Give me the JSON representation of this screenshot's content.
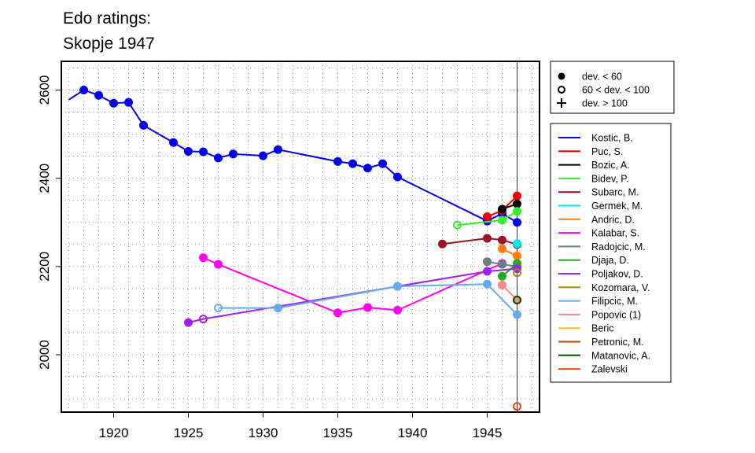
{
  "chart_data": {
    "type": "line",
    "title_lines": [
      "Edo ratings:",
      "Skopje 1947"
    ],
    "xlabel": "",
    "ylabel": "",
    "xlim": [
      1916.5,
      1948.5
    ],
    "ylim": [
      1870,
      2665
    ],
    "x_ticks": [
      1920,
      1925,
      1930,
      1935,
      1940,
      1945
    ],
    "y_ticks": [
      2000,
      2200,
      2400,
      2600
    ],
    "grid": "dotted",
    "reference_line_x": 1947,
    "legend_placement": "right",
    "marker_legend": [
      {
        "marker": "filled",
        "label": "dev. < 60"
      },
      {
        "marker": "open",
        "label": "60 < dev. < 100"
      },
      {
        "marker": "plus",
        "label": "dev. > 100"
      }
    ],
    "series": [
      {
        "name": "Kostic, B.",
        "color": "#0000ee",
        "points": [
          {
            "x": 1917,
            "y": 2578,
            "m": "none"
          },
          {
            "x": 1918,
            "y": 2600,
            "m": "filled"
          },
          {
            "x": 1919,
            "y": 2588,
            "m": "filled"
          },
          {
            "x": 1920,
            "y": 2570,
            "m": "filled"
          },
          {
            "x": 1921,
            "y": 2572,
            "m": "filled"
          },
          {
            "x": 1922,
            "y": 2520,
            "m": "filled"
          },
          {
            "x": 1924,
            "y": 2481,
            "m": "filled"
          },
          {
            "x": 1925,
            "y": 2461,
            "m": "filled"
          },
          {
            "x": 1926,
            "y": 2460,
            "m": "filled"
          },
          {
            "x": 1927,
            "y": 2446,
            "m": "filled"
          },
          {
            "x": 1928,
            "y": 2455,
            "m": "filled"
          },
          {
            "x": 1930,
            "y": 2451,
            "m": "filled"
          },
          {
            "x": 1931,
            "y": 2465,
            "m": "filled"
          },
          {
            "x": 1935,
            "y": 2438,
            "m": "filled"
          },
          {
            "x": 1936,
            "y": 2433,
            "m": "filled"
          },
          {
            "x": 1937,
            "y": 2423,
            "m": "filled"
          },
          {
            "x": 1938,
            "y": 2433,
            "m": "filled"
          },
          {
            "x": 1939,
            "y": 2403,
            "m": "filled"
          },
          {
            "x": 1945,
            "y": 2303,
            "m": "filled"
          },
          {
            "x": 1946,
            "y": 2320,
            "m": "filled"
          },
          {
            "x": 1947,
            "y": 2300,
            "m": "filled"
          }
        ]
      },
      {
        "name": "Puc, S.",
        "color": "#ee0000",
        "points": [
          {
            "x": 1945,
            "y": 2313,
            "m": "filled"
          },
          {
            "x": 1946,
            "y": 2327,
            "m": "filled"
          },
          {
            "x": 1947,
            "y": 2360,
            "m": "filled"
          }
        ]
      },
      {
        "name": "Bozic, A.",
        "color": "#000000",
        "points": [
          {
            "x": 1946,
            "y": 2330,
            "m": "filled"
          },
          {
            "x": 1947,
            "y": 2342,
            "m": "filled"
          }
        ]
      },
      {
        "name": "Bidev, P.",
        "color": "#33ee33",
        "points": [
          {
            "x": 1943,
            "y": 2294,
            "m": "open"
          },
          {
            "x": 1946,
            "y": 2305,
            "m": "filled"
          },
          {
            "x": 1947,
            "y": 2325,
            "m": "filled"
          }
        ]
      },
      {
        "name": "Subarc, M.",
        "color": "#a01020",
        "points": [
          {
            "x": 1942,
            "y": 2251,
            "m": "filled"
          },
          {
            "x": 1945,
            "y": 2264,
            "m": "filled"
          },
          {
            "x": 1946,
            "y": 2260,
            "m": "filled"
          },
          {
            "x": 1947,
            "y": 2250,
            "m": "filled"
          }
        ]
      },
      {
        "name": "Germek, M.",
        "color": "#00e8ee",
        "points": [
          {
            "x": 1947,
            "y": 2252,
            "m": "filled"
          }
        ]
      },
      {
        "name": "Andric, D.",
        "color": "#ff7f0e",
        "points": [
          {
            "x": 1946,
            "y": 2240,
            "m": "filled"
          },
          {
            "x": 1947,
            "y": 2224,
            "m": "filled"
          }
        ]
      },
      {
        "name": "Kalabar, S.",
        "color": "#ff00ee",
        "points": [
          {
            "x": 1926,
            "y": 2220,
            "m": "filled"
          },
          {
            "x": 1927,
            "y": 2205,
            "m": "filled"
          },
          {
            "x": 1935,
            "y": 2095,
            "m": "filled"
          },
          {
            "x": 1937,
            "y": 2107,
            "m": "filled"
          },
          {
            "x": 1939,
            "y": 2101,
            "m": "filled"
          },
          {
            "x": 1946,
            "y": 2207,
            "m": "filled"
          }
        ]
      },
      {
        "name": "Radojcic, M.",
        "color": "#6a7f80",
        "points": [
          {
            "x": 1945,
            "y": 2211,
            "m": "filled"
          },
          {
            "x": 1946,
            "y": 2205,
            "m": "filled"
          },
          {
            "x": 1947,
            "y": 2200,
            "m": "filled"
          }
        ]
      },
      {
        "name": "Djaja, D.",
        "color": "#22aa22",
        "points": [
          {
            "x": 1946,
            "y": 2178,
            "m": "filled"
          },
          {
            "x": 1947,
            "y": 2207,
            "m": "filled"
          }
        ]
      },
      {
        "name": "Poljakov, D.",
        "color": "#a020ee",
        "points": [
          {
            "x": 1925,
            "y": 2073,
            "m": "filled"
          },
          {
            "x": 1926,
            "y": 2081,
            "m": "open"
          },
          {
            "x": 1939,
            "y": 2155,
            "m": "filled"
          },
          {
            "x": 1945,
            "y": 2189,
            "m": "filled"
          },
          {
            "x": 1947,
            "y": 2195,
            "m": "filled"
          }
        ]
      },
      {
        "name": "Kozomara, V.",
        "color": "#a09000",
        "points": [
          {
            "x": 1947,
            "y": 2186,
            "m": "open"
          }
        ]
      },
      {
        "name": "Filipcic, M.",
        "color": "#66aaee",
        "points": [
          {
            "x": 1927,
            "y": 2106,
            "m": "open"
          },
          {
            "x": 1931,
            "y": 2106,
            "m": "filled"
          },
          {
            "x": 1939,
            "y": 2155,
            "m": "filled"
          },
          {
            "x": 1945,
            "y": 2160,
            "m": "filled"
          },
          {
            "x": 1947,
            "y": 2091,
            "m": "filled"
          }
        ]
      },
      {
        "name": "Popovic (1)",
        "color": "#ff8888",
        "points": [
          {
            "x": 1946,
            "y": 2158,
            "m": "filled"
          },
          {
            "x": 1947,
            "y": 2124,
            "m": "filled"
          }
        ]
      },
      {
        "name": "Beric",
        "color": "#f4c020",
        "points": [
          {
            "x": 1947,
            "y": 2124,
            "m": "open"
          }
        ]
      },
      {
        "name": "Petronic, M.",
        "color": "#b05000",
        "points": [
          {
            "x": 1947,
            "y": 2124,
            "m": "open"
          }
        ]
      },
      {
        "name": "Matanovic, A.",
        "color": "#005500",
        "points": [
          {
            "x": 1947,
            "y": 2124,
            "m": "open"
          }
        ]
      },
      {
        "name": "Zalevski",
        "color": "#ee4422",
        "points": [
          {
            "x": 1947,
            "y": 1883,
            "m": "open"
          }
        ]
      }
    ]
  }
}
